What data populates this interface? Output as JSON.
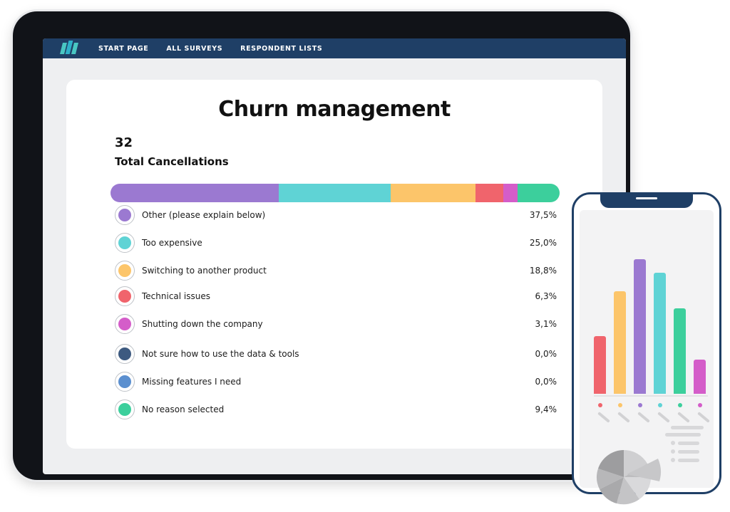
{
  "nav": {
    "links": [
      "START PAGE",
      "ALL SURVEYS",
      "RESPONDENT LISTS"
    ]
  },
  "card": {
    "title": "Churn management",
    "total_count": "32",
    "total_label": "Total Cancellations"
  },
  "reasons": [
    {
      "label": "Other (please explain below)",
      "percent": "37,5%",
      "value": 37.5,
      "color": "#9b79d1"
    },
    {
      "label": "Too expensive",
      "percent": "25,0%",
      "value": 25.0,
      "color": "#5fd3d5"
    },
    {
      "label": "Switching to another product",
      "percent": "18,8%",
      "value": 18.8,
      "color": "#fcc56a"
    },
    {
      "label": "Technical issues",
      "percent": "6,3%",
      "value": 6.3,
      "color": "#f0646c"
    },
    {
      "label": "Shutting down the company",
      "percent": "3,1%",
      "value": 3.1,
      "color": "#d45dc9"
    },
    {
      "label": "Not sure how to use the data & tools",
      "percent": "0,0%",
      "value": 0.0,
      "color": "#3d5a80"
    },
    {
      "label": "Missing features I need",
      "percent": "0,0%",
      "value": 0.0,
      "color": "#5b8fcf"
    },
    {
      "label": "No reason selected",
      "percent": "9,4%",
      "value": 9.4,
      "color": "#3ccf9c"
    }
  ],
  "phone_chart": {
    "bars": [
      {
        "value": 44,
        "color": "#f0646c"
      },
      {
        "value": 78,
        "color": "#fcc56a"
      },
      {
        "value": 102,
        "color": "#9b79d1"
      },
      {
        "value": 92,
        "color": "#5fd3d5"
      },
      {
        "value": 65,
        "color": "#3ccf9c"
      },
      {
        "value": 26,
        "color": "#d45dc9"
      }
    ]
  }
}
